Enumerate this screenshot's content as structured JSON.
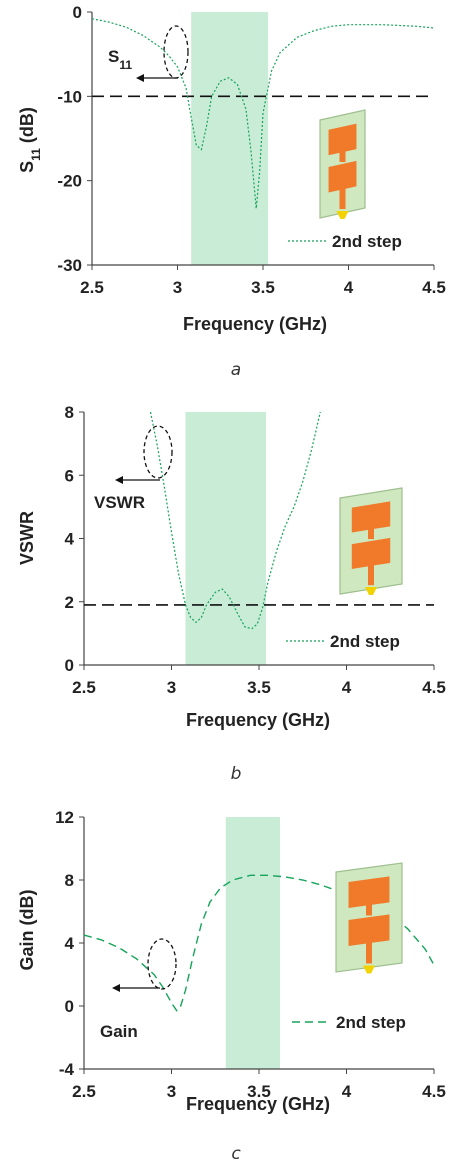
{
  "chart_data": [
    {
      "type": "line",
      "panel_label": "a",
      "xlabel": "Frequency (GHz)",
      "ylabel_main": "S",
      "ylabel_sub": "11",
      "ylabel_unit": " (dB)",
      "xlim": [
        2.5,
        4.5
      ],
      "ylim": [
        -30,
        0
      ],
      "x_ticks": [
        "2.5",
        "3",
        "3.5",
        "4",
        "4.5"
      ],
      "y_ticks": [
        "0",
        "-10",
        "-20",
        "-30"
      ],
      "y_tick_values": [
        0,
        -10,
        -20,
        -30
      ],
      "x_tick_values": [
        2.5,
        3,
        3.5,
        4,
        4.5
      ],
      "band": [
        3.08,
        3.53
      ],
      "ref_line": -10,
      "series": [
        {
          "name": "2nd step",
          "style": "dotted",
          "x": [
            2.5,
            2.6,
            2.7,
            2.8,
            2.9,
            2.95,
            3.0,
            3.05,
            3.08,
            3.11,
            3.14,
            3.17,
            3.2,
            3.25,
            3.3,
            3.35,
            3.4,
            3.43,
            3.46,
            3.48,
            3.5,
            3.55,
            3.6,
            3.7,
            3.8,
            3.9,
            4.0,
            4.2,
            4.4,
            4.5
          ],
          "y": [
            -0.8,
            -1.2,
            -1.8,
            -2.8,
            -4.2,
            -5.2,
            -6.5,
            -9.0,
            -12.5,
            -15.8,
            -16.3,
            -13.5,
            -10.0,
            -8.2,
            -7.8,
            -8.6,
            -11.5,
            -16.5,
            -23.3,
            -19.0,
            -12.0,
            -7.0,
            -4.8,
            -3.0,
            -2.2,
            -1.7,
            -1.5,
            -1.5,
            -1.7,
            -1.9
          ]
        }
      ],
      "annotation_label": "S",
      "annotation_sub": "11",
      "legend": "bottom-right"
    },
    {
      "type": "line",
      "panel_label": "b",
      "xlabel": "Frequency (GHz)",
      "ylabel": "VSWR",
      "xlim": [
        2.5,
        4.5
      ],
      "ylim": [
        0,
        8
      ],
      "x_ticks": [
        "2.5",
        "3",
        "3.5",
        "4",
        "4.5"
      ],
      "y_ticks": [
        "8",
        "6",
        "4",
        "2",
        "0"
      ],
      "y_tick_values": [
        8,
        6,
        4,
        2,
        0
      ],
      "x_tick_values": [
        2.5,
        3,
        3.5,
        4,
        4.5
      ],
      "band": [
        3.08,
        3.54
      ],
      "ref_line": 1.9,
      "series": [
        {
          "name": "2nd step",
          "style": "dotted",
          "x": [
            2.88,
            2.92,
            2.96,
            3.0,
            3.04,
            3.08,
            3.11,
            3.14,
            3.17,
            3.2,
            3.25,
            3.29,
            3.33,
            3.38,
            3.42,
            3.46,
            3.49,
            3.52,
            3.55,
            3.6,
            3.65,
            3.7,
            3.75,
            3.8,
            3.85
          ],
          "y": [
            8.0,
            6.9,
            5.6,
            4.2,
            2.9,
            1.9,
            1.5,
            1.35,
            1.5,
            1.9,
            2.3,
            2.4,
            2.15,
            1.6,
            1.2,
            1.15,
            1.3,
            1.8,
            2.6,
            3.6,
            4.4,
            5.0,
            5.8,
            6.8,
            8.0
          ]
        }
      ],
      "annotation_label": "VSWR",
      "legend": "bottom-right"
    },
    {
      "type": "line",
      "panel_label": "c",
      "xlabel": "Frequency (GHz)",
      "ylabel": "Gain (dB)",
      "xlim": [
        2.5,
        4.5
      ],
      "ylim": [
        -4,
        12
      ],
      "x_ticks": [
        "2.5",
        "3",
        "3.5",
        "4",
        "4.5"
      ],
      "y_ticks": [
        "12",
        "8",
        "4",
        "0",
        "-4"
      ],
      "y_tick_values": [
        12,
        8,
        4,
        0,
        -4
      ],
      "x_tick_values": [
        2.5,
        3,
        3.5,
        4,
        4.5
      ],
      "band": [
        3.31,
        3.62
      ],
      "series": [
        {
          "name": "2nd step",
          "style": "dashed",
          "x": [
            2.5,
            2.6,
            2.7,
            2.8,
            2.9,
            2.95,
            3.0,
            3.03,
            3.05,
            3.08,
            3.12,
            3.17,
            3.22,
            3.28,
            3.35,
            3.45,
            3.55,
            3.65,
            3.75,
            3.85,
            3.95,
            4.05,
            4.15,
            4.25,
            4.35,
            4.45,
            4.5
          ],
          "y": [
            4.5,
            4.2,
            3.7,
            3.0,
            2.0,
            1.2,
            0.2,
            -0.3,
            -0.1,
            1.0,
            3.0,
            5.2,
            6.6,
            7.5,
            8.0,
            8.3,
            8.3,
            8.2,
            8.0,
            7.7,
            7.3,
            6.9,
            6.4,
            5.8,
            4.9,
            3.6,
            2.6
          ]
        }
      ],
      "annotation_label": "Gain",
      "legend": "bottom-right"
    }
  ],
  "colors": {
    "curve": "#16a35a",
    "band": "#c8ecd6",
    "ref": "#111111",
    "axis": "#444444",
    "board": "#cfe8c0",
    "board_edge": "#9fbf90",
    "patch": "#f07a2a",
    "feed": "#f2d200"
  }
}
